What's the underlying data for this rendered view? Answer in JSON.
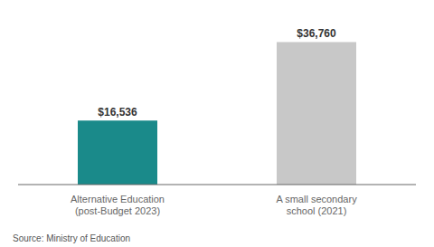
{
  "chart_data": {
    "type": "bar",
    "categories": [
      "Alternative Education\n(post-Budget 2023)",
      "A small secondary\nschool (2021)"
    ],
    "values": [
      16536,
      36760
    ],
    "value_labels": [
      "$16,536",
      "$36,760"
    ],
    "colors": [
      "#1a8a8a",
      "#c8c8c8"
    ],
    "ylim": [
      0,
      42000
    ],
    "data_labels": true,
    "tick_labels": "x",
    "annotation": "Source: Ministry of Education"
  }
}
